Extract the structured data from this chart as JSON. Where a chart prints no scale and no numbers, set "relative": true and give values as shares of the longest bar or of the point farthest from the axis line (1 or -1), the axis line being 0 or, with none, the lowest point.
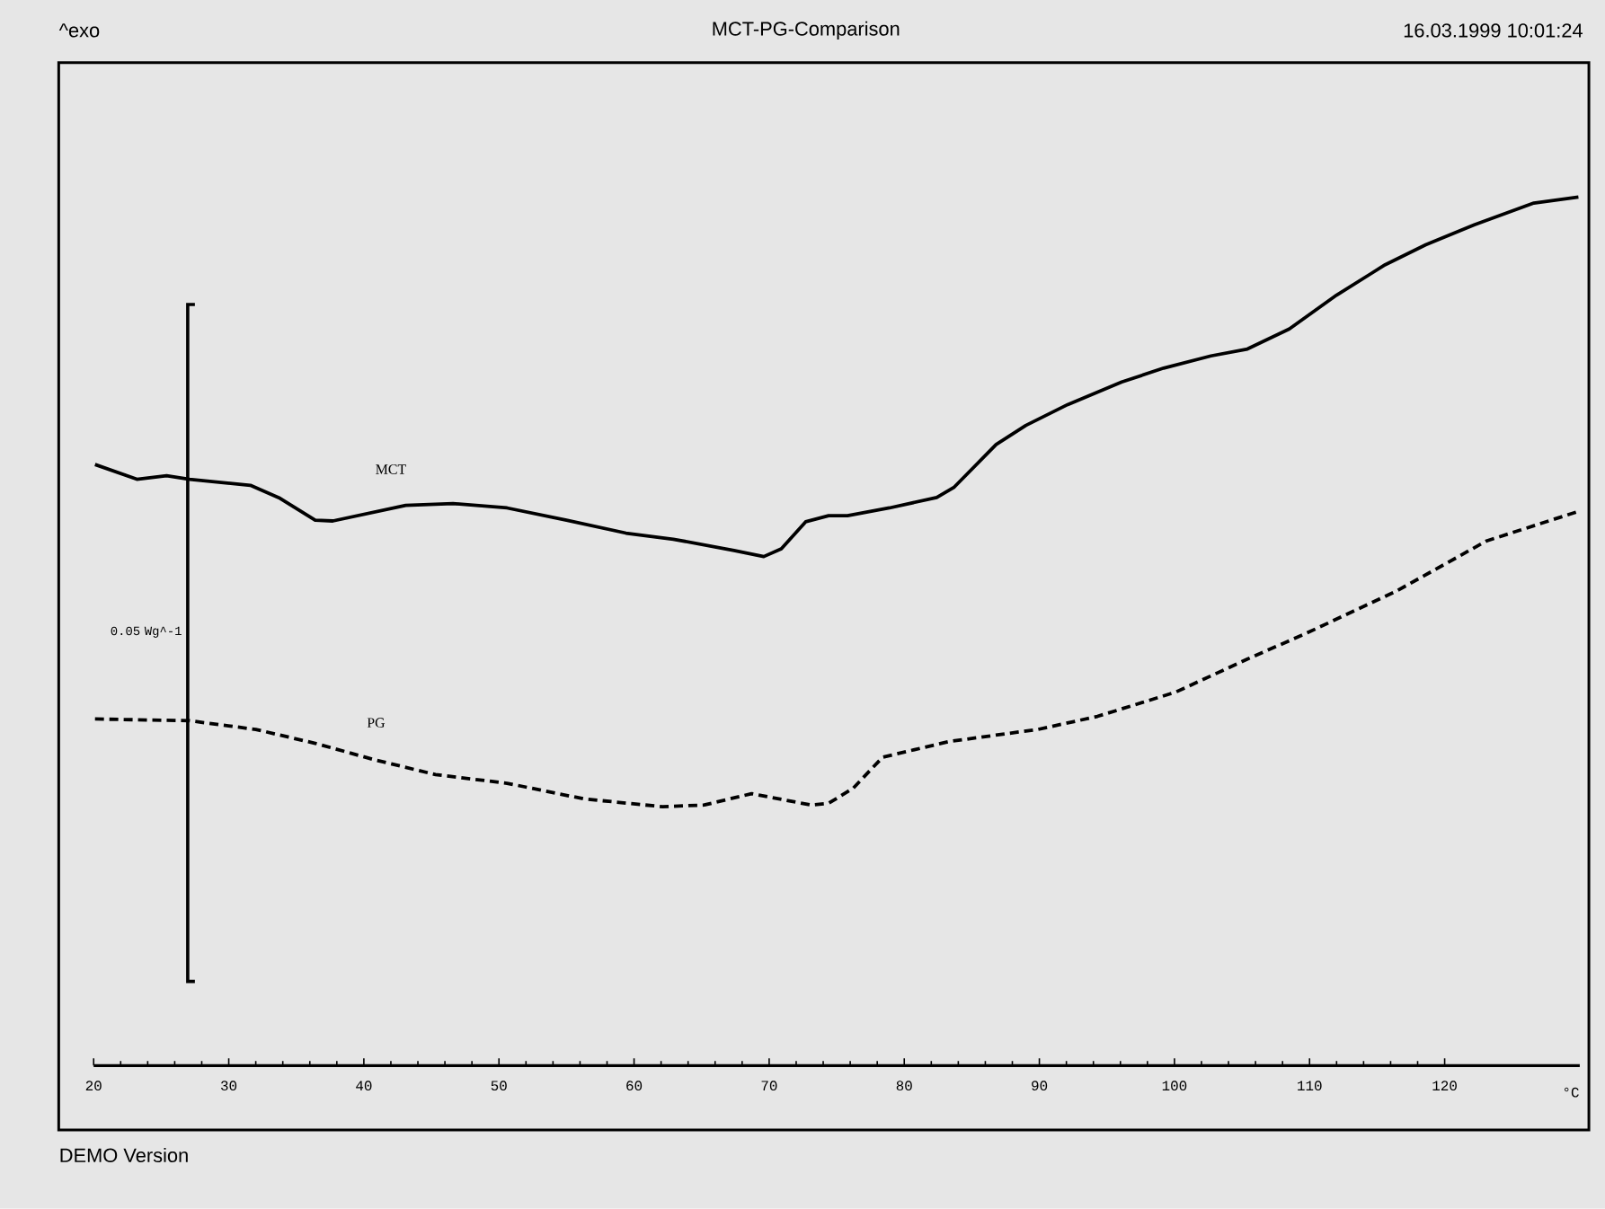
{
  "chart_data": {
    "type": "line",
    "title": "MCT-PG-Comparison",
    "xlabel": "°C",
    "relative": true,
    "annotations": [
      "^exo",
      "16.03.1999 10:01:24",
      "0.05 Wg^-1",
      "DEMO Version"
    ],
    "xlim": [
      20,
      130
    ],
    "xticks": [
      20,
      30,
      40,
      50,
      60,
      70,
      80,
      90,
      100,
      110,
      120
    ],
    "series": [
      {
        "name": "MCT",
        "color": "#000000",
        "line_style": "solid",
        "x": [
          20.1,
          23.2,
          25.4,
          27.1,
          31.6,
          33.8,
          36.4,
          37.7,
          43.1,
          46.6,
          50.6,
          55.0,
          59.4,
          62.9,
          67.4,
          69.6,
          70.9,
          72.7,
          74.4,
          75.8,
          78.9,
          82.4,
          83.7,
          86.8,
          89.0,
          92.1,
          96.1,
          99.2,
          102.7,
          105.4,
          108.5,
          112.0,
          115.6,
          118.6,
          122.2,
          126.6,
          129.9
        ],
        "values": [
          0.692,
          0.675,
          0.679,
          0.675,
          0.668,
          0.653,
          0.628,
          0.627,
          0.645,
          0.647,
          0.642,
          0.628,
          0.613,
          0.606,
          0.593,
          0.586,
          0.595,
          0.626,
          0.633,
          0.633,
          0.642,
          0.654,
          0.666,
          0.715,
          0.737,
          0.761,
          0.787,
          0.803,
          0.817,
          0.825,
          0.848,
          0.887,
          0.922,
          0.945,
          0.968,
          0.993,
          1.0
        ]
      },
      {
        "name": "PG",
        "color": "#000000",
        "line_style": "dashed",
        "x": [
          20.1,
          27.1,
          32.0,
          36.4,
          40.8,
          45.3,
          50.6,
          56.3,
          62.1,
          65.2,
          68.7,
          73.1,
          74.4,
          76.2,
          78.4,
          83.3,
          89.9,
          94.3,
          100.1,
          105.4,
          109.8,
          116.4,
          123.1,
          129.9
        ],
        "values": [
          0.399,
          0.397,
          0.387,
          0.371,
          0.352,
          0.335,
          0.325,
          0.307,
          0.298,
          0.3,
          0.313,
          0.3,
          0.302,
          0.319,
          0.355,
          0.373,
          0.387,
          0.402,
          0.43,
          0.468,
          0.498,
          0.546,
          0.604,
          0.638
        ]
      }
    ]
  }
}
